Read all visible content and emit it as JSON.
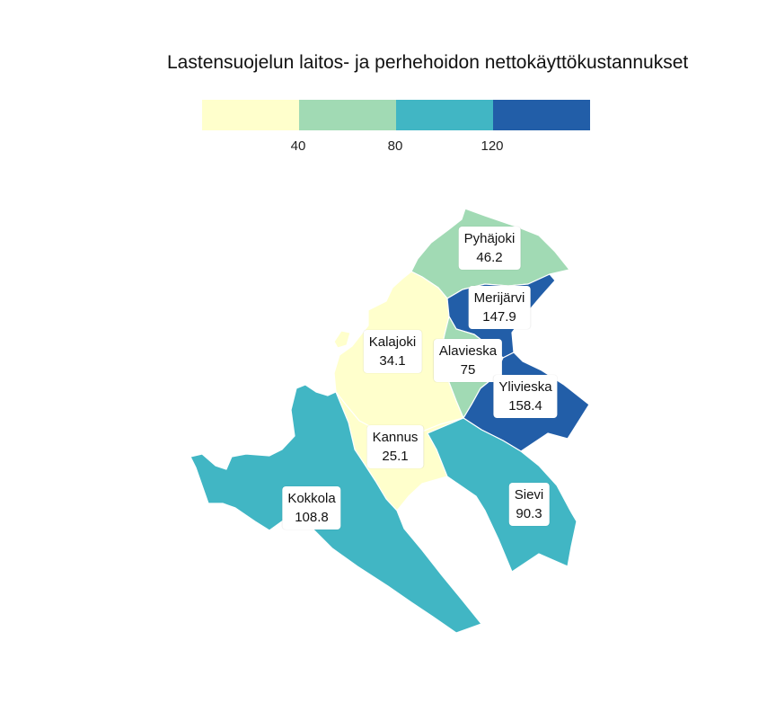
{
  "title": "Lastensuojelun laitos- ja perhehoidon nettokäyttökustannukset",
  "legend": {
    "colors": [
      "#ffffcc",
      "#a1dab4",
      "#41b6c4",
      "#225ea8"
    ],
    "ticks": [
      "40",
      "80",
      "120"
    ]
  },
  "regions": [
    {
      "name": "Pyhäjoki",
      "value": "46.2",
      "color": "#a1dab4"
    },
    {
      "name": "Merijärvi",
      "value": "147.9",
      "color": "#225ea8"
    },
    {
      "name": "Kalajoki",
      "value": "34.1",
      "color": "#ffffcc"
    },
    {
      "name": "Alavieska",
      "value": "75",
      "color": "#a1dab4"
    },
    {
      "name": "Ylivieska",
      "value": "158.4",
      "color": "#225ea8"
    },
    {
      "name": "Kannus",
      "value": "25.1",
      "color": "#ffffcc"
    },
    {
      "name": "Kokkola",
      "value": "108.8",
      "color": "#41b6c4"
    },
    {
      "name": "Sievi",
      "value": "90.3",
      "color": "#41b6c4"
    }
  ]
}
